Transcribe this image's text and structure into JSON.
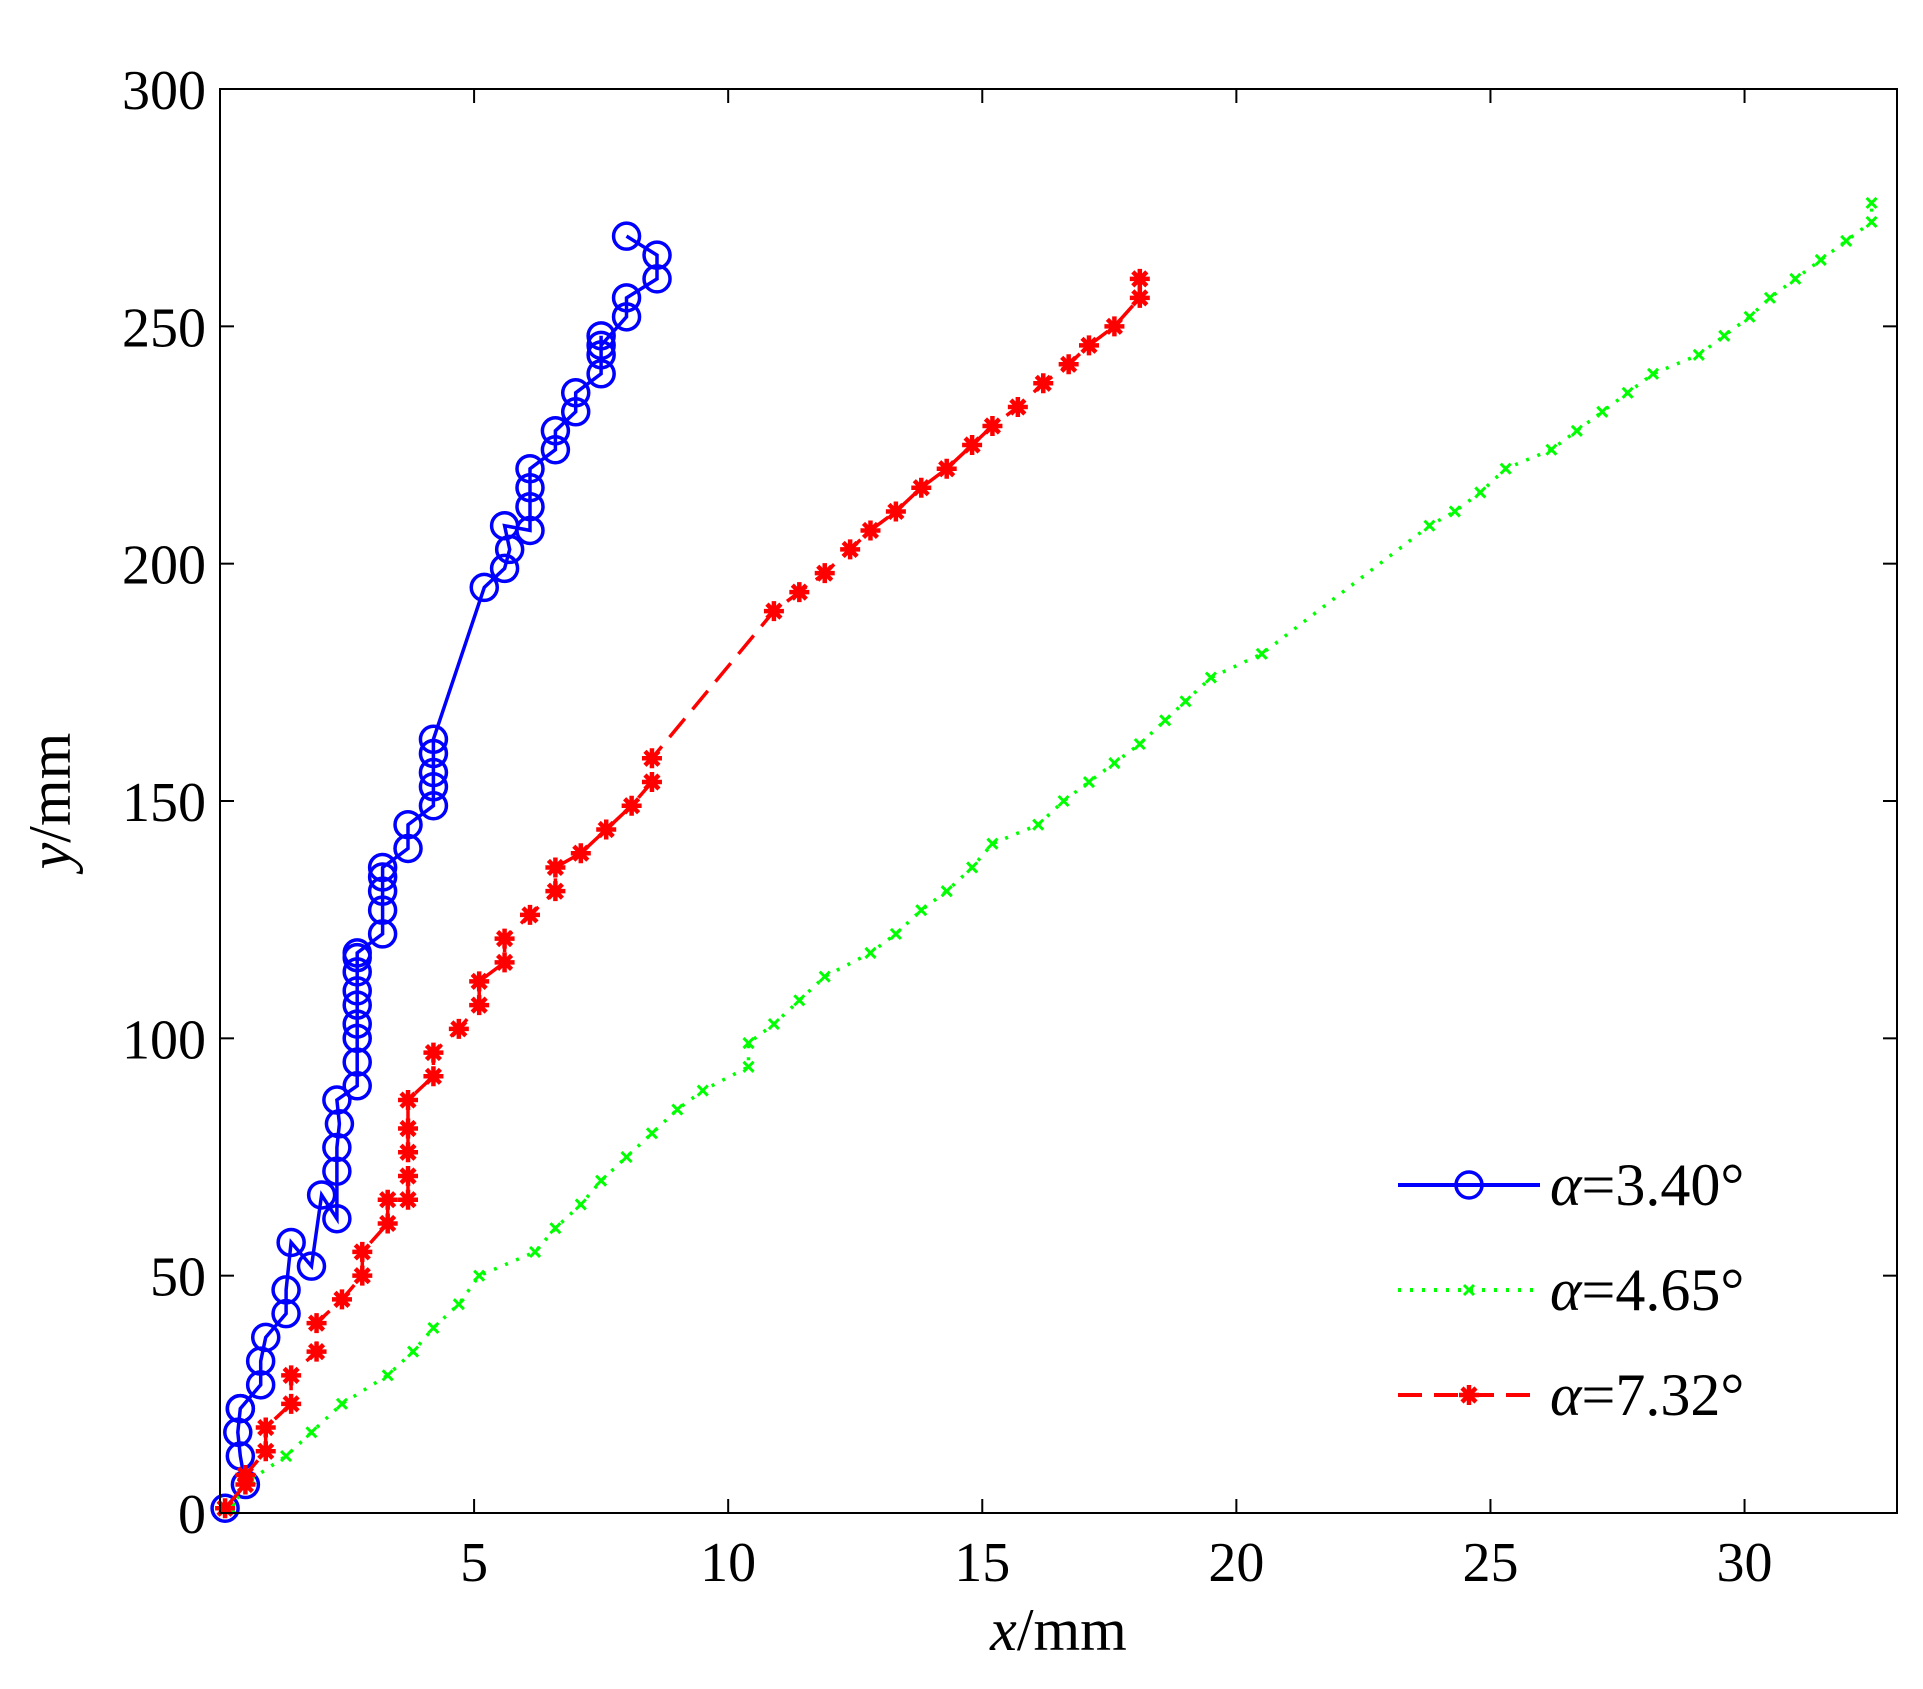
{
  "chart_data": {
    "type": "line",
    "title": "",
    "xlabel": {
      "var": "x",
      "unit": "/mm"
    },
    "ylabel": {
      "var": "y",
      "unit": "/mm"
    },
    "xlim": [
      0,
      33
    ],
    "ylim": [
      0,
      300
    ],
    "xticks": [
      5,
      10,
      15,
      20,
      25,
      30
    ],
    "yticks": [
      0,
      50,
      100,
      150,
      200,
      250,
      300
    ],
    "grid": false,
    "legend_position": "bottom-right",
    "series": [
      {
        "name": "α=3.40°",
        "legend_var": "α",
        "legend_value": "=3.40°",
        "color": "#0000ff",
        "line_style": "solid",
        "marker": "circle",
        "x": [
          0.1,
          0.5,
          0.4,
          0.35,
          0.4,
          0.4,
          0.8,
          0.8,
          0.9,
          1.3,
          1.3,
          1.4,
          1.8,
          2.0,
          2.3,
          2.3,
          2.3,
          2.35,
          2.3,
          2.7,
          2.7,
          2.7,
          2.7,
          2.7,
          2.7,
          2.7,
          2.7,
          2.7,
          3.2,
          3.2,
          3.2,
          3.2,
          3.2,
          3.7,
          3.7,
          4.2,
          4.2,
          4.2,
          4.2,
          4.2,
          5.2,
          5.6,
          5.7,
          5.6,
          6.1,
          6.1,
          6.1,
          6.1,
          6.6,
          6.6,
          7.0,
          7.0,
          7.5,
          7.5,
          7.5,
          7.5,
          8.0,
          8.0,
          8.6,
          8.6,
          8.0
        ],
        "y": [
          1,
          6,
          12,
          17,
          22,
          22,
          27,
          32,
          37,
          42,
          47,
          57,
          52,
          67,
          62,
          72,
          77,
          82,
          87,
          90,
          95,
          100,
          103,
          107,
          110,
          114,
          117,
          118,
          122,
          127,
          131,
          134,
          136,
          140,
          145,
          149,
          153,
          156,
          160,
          163,
          195,
          199,
          203,
          208,
          207,
          212,
          216,
          220,
          224,
          228,
          232,
          236,
          240,
          244,
          248,
          246,
          252,
          256,
          260,
          265,
          269
        ]
      },
      {
        "name": "α=4.65°",
        "legend_var": "α",
        "legend_value": "=4.65°",
        "color": "#00ff00",
        "line_style": "dotted",
        "marker": "x",
        "x": [
          0.2,
          0.6,
          1.3,
          1.8,
          2.4,
          3.3,
          3.8,
          4.2,
          4.7,
          5.1,
          6.2,
          6.6,
          7.1,
          7.5,
          8.0,
          8.5,
          9.0,
          9.5,
          10.4,
          10.4,
          10.9,
          11.4,
          11.9,
          12.8,
          13.3,
          13.8,
          14.3,
          14.8,
          15.2,
          16.1,
          16.6,
          17.1,
          17.6,
          18.1,
          18.6,
          19.0,
          19.5,
          20.5,
          23.8,
          24.3,
          24.8,
          25.3,
          26.2,
          26.7,
          27.2,
          27.7,
          28.2,
          29.1,
          29.6,
          30.1,
          30.5,
          31.0,
          31.5,
          32.0,
          32.5,
          32.5
        ],
        "y": [
          1,
          7,
          12,
          17,
          23,
          29,
          34,
          39,
          44,
          50,
          55,
          60,
          65,
          70,
          75,
          80,
          85,
          89,
          94,
          99,
          103,
          108,
          113,
          118,
          122,
          127,
          131,
          136,
          141,
          145,
          150,
          154,
          158,
          162,
          167,
          171,
          176,
          181,
          208,
          211,
          215,
          220,
          224,
          228,
          232,
          236,
          240,
          244,
          248,
          252,
          256,
          260,
          264,
          268,
          272,
          276
        ]
      },
      {
        "name": "α=7.32°",
        "legend_var": "α",
        "legend_value": "=7.32°",
        "color": "#ff0000",
        "line_style": "dashed",
        "marker": "star",
        "x": [
          0.1,
          0.5,
          0.5,
          0.9,
          0.9,
          1.4,
          1.4,
          1.9,
          1.9,
          2.4,
          2.8,
          2.8,
          3.3,
          3.3,
          3.7,
          3.7,
          3.7,
          3.7,
          3.7,
          4.2,
          4.2,
          4.7,
          5.1,
          5.1,
          5.6,
          5.6,
          6.1,
          6.6,
          6.6,
          7.1,
          7.6,
          8.1,
          8.5,
          8.5,
          10.9,
          11.4,
          11.9,
          12.4,
          12.8,
          13.3,
          13.8,
          14.3,
          14.8,
          15.2,
          15.7,
          16.2,
          16.7,
          17.1,
          17.6,
          18.1,
          18.1
        ],
        "y": [
          1,
          6,
          8,
          13,
          18,
          23,
          29,
          34,
          40,
          45,
          50,
          55,
          61,
          66,
          66,
          71,
          76,
          81,
          87,
          92,
          97,
          102,
          107,
          112,
          116,
          121,
          126,
          131,
          136,
          139,
          144,
          149,
          154,
          159,
          190,
          194,
          198,
          203,
          207,
          211,
          216,
          220,
          225,
          229,
          233,
          238,
          242,
          246,
          250,
          256,
          260
        ]
      }
    ]
  }
}
